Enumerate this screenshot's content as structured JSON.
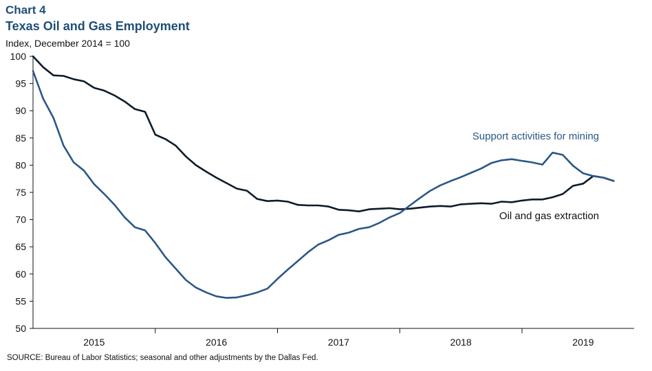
{
  "header": {
    "chart_number": "Chart 4",
    "title": "Texas Oil and Gas Employment",
    "y_axis_label": "Index,  December 2014 = 100"
  },
  "footer": {
    "source": "SOURCE: Bureau of Labor Statistics; seasonal and other adjustments by the Dallas Fed."
  },
  "chart_data": {
    "type": "line",
    "title": "Texas Oil and Gas Employment",
    "ylabel": "Index,  December 2014 = 100",
    "xlabel": "",
    "ylim": [
      50,
      100
    ],
    "yticks": [
      50,
      55,
      60,
      65,
      70,
      75,
      80,
      85,
      90,
      95,
      100
    ],
    "xticks": [
      {
        "label": "2015",
        "x": 2015.5
      },
      {
        "label": "2016",
        "x": 2016.5
      },
      {
        "label": "2017",
        "x": 2017.5
      },
      {
        "label": "2018",
        "x": 2018.5
      },
      {
        "label": "2019",
        "x": 2019.5
      }
    ],
    "year_boundaries": [
      2016,
      2017,
      2018,
      2019
    ],
    "xlim": [
      2015,
      2019.917
    ],
    "grid": false,
    "series": [
      {
        "name": "Oil and gas extraction",
        "color": "#0d1b2a",
        "label_position": "right, below line",
        "x": [
          2015.0,
          2015.083,
          2015.167,
          2015.25,
          2015.333,
          2015.417,
          2015.5,
          2015.583,
          2015.667,
          2015.75,
          2015.833,
          2015.917,
          2016.0,
          2016.083,
          2016.167,
          2016.25,
          2016.333,
          2016.417,
          2016.5,
          2016.583,
          2016.667,
          2016.75,
          2016.833,
          2016.917,
          2017.0,
          2017.083,
          2017.167,
          2017.25,
          2017.333,
          2017.417,
          2017.5,
          2017.583,
          2017.667,
          2017.75,
          2017.833,
          2017.917,
          2018.0,
          2018.083,
          2018.167,
          2018.25,
          2018.333,
          2018.417,
          2018.5,
          2018.583,
          2018.667,
          2018.75,
          2018.833,
          2018.917,
          2019.0,
          2019.083,
          2019.167,
          2019.25,
          2019.333,
          2019.417,
          2019.5,
          2019.583,
          2019.667,
          2019.75
        ],
        "values": [
          100.0,
          98.0,
          96.5,
          96.4,
          95.8,
          95.4,
          94.2,
          93.7,
          92.8,
          91.7,
          90.3,
          89.8,
          85.6,
          84.8,
          83.6,
          81.6,
          80.0,
          78.8,
          77.7,
          76.7,
          75.7,
          75.3,
          73.8,
          73.4,
          73.5,
          73.3,
          72.7,
          72.6,
          72.6,
          72.4,
          71.8,
          71.7,
          71.5,
          71.9,
          72.0,
          72.1,
          71.9,
          72.0,
          72.2,
          72.4,
          72.5,
          72.4,
          72.8,
          72.9,
          73.0,
          72.9,
          73.3,
          73.2,
          73.5,
          73.7,
          73.7,
          74.1,
          74.7,
          76.2,
          76.6,
          78.0,
          77.7,
          77.1
        ]
      },
      {
        "name": "Support activities for mining",
        "color": "#2b5688",
        "label_position": "upper right, above line",
        "x": [
          2015.0,
          2015.083,
          2015.167,
          2015.25,
          2015.333,
          2015.417,
          2015.5,
          2015.583,
          2015.667,
          2015.75,
          2015.833,
          2015.917,
          2016.0,
          2016.083,
          2016.167,
          2016.25,
          2016.333,
          2016.417,
          2016.5,
          2016.583,
          2016.667,
          2016.75,
          2016.833,
          2016.917,
          2017.0,
          2017.083,
          2017.167,
          2017.25,
          2017.333,
          2017.417,
          2017.5,
          2017.583,
          2017.667,
          2017.75,
          2017.833,
          2017.917,
          2018.0,
          2018.083,
          2018.167,
          2018.25,
          2018.333,
          2018.417,
          2018.5,
          2018.583,
          2018.667,
          2018.75,
          2018.833,
          2018.917,
          2019.0,
          2019.083,
          2019.167,
          2019.25,
          2019.333,
          2019.417,
          2019.5,
          2019.583,
          2019.667,
          2019.75
        ],
        "values": [
          97.3,
          92.2,
          88.7,
          83.6,
          80.5,
          79.0,
          76.5,
          74.7,
          72.7,
          70.4,
          68.6,
          68.0,
          65.7,
          63.1,
          61.0,
          58.9,
          57.5,
          56.6,
          55.9,
          55.6,
          55.7,
          56.1,
          56.6,
          57.3,
          59.1,
          60.8,
          62.4,
          64.0,
          65.4,
          66.2,
          67.2,
          67.6,
          68.3,
          68.6,
          69.4,
          70.4,
          71.2,
          72.6,
          74.0,
          75.3,
          76.3,
          77.1,
          77.8,
          78.6,
          79.4,
          80.4,
          80.9,
          81.1,
          80.8,
          80.5,
          80.1,
          82.3,
          81.9,
          79.9,
          78.5,
          78.0,
          77.7,
          77.1
        ]
      }
    ]
  }
}
